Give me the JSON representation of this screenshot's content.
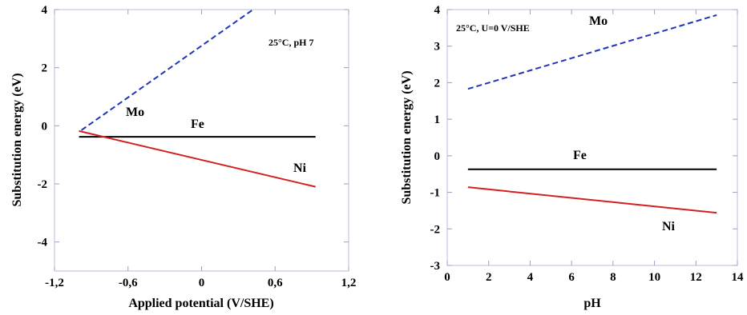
{
  "chart_data": [
    {
      "type": "line",
      "title": "",
      "xlabel": "Applied potential (V/SHE)",
      "ylabel": "Substitution energy (eV)",
      "xlim": [
        -1.2,
        1.2
      ],
      "ylim": [
        -5,
        4
      ],
      "x_ticks": [
        -1.2,
        -0.6,
        0,
        0.6,
        1.2
      ],
      "x_tick_labels": [
        "-1,2",
        "-0,6",
        "0",
        "0,6",
        "1,2"
      ],
      "y_ticks": [
        -4,
        -2,
        0,
        2,
        4
      ],
      "y_tick_labels": [
        "-4",
        "-2",
        "0",
        "2",
        "4"
      ],
      "condition_label": "25°C, pH 7",
      "grid": false,
      "series": [
        {
          "name": "Mo",
          "color": "#1f35b8",
          "dash": "dashed",
          "points": [
            [
              -0.98,
              -0.15
            ],
            [
              0.42,
              4.0
            ]
          ]
        },
        {
          "name": "Fe",
          "color": "#000000",
          "dash": "solid",
          "points": [
            [
              -1.0,
              -0.38
            ],
            [
              0.93,
              -0.38
            ]
          ]
        },
        {
          "name": "Ni",
          "color": "#d42020",
          "dash": "solid",
          "points": [
            [
              -1.0,
              -0.18
            ],
            [
              0.93,
              -2.1
            ]
          ]
        }
      ]
    },
    {
      "type": "line",
      "title": "",
      "xlabel": "pH",
      "ylabel": "Substitution energy (eV)",
      "xlim": [
        0,
        14
      ],
      "ylim": [
        -3,
        4
      ],
      "x_ticks": [
        0,
        2,
        4,
        6,
        8,
        10,
        12,
        14
      ],
      "x_tick_labels": [
        "0",
        "2",
        "4",
        "6",
        "8",
        "10",
        "12",
        "14"
      ],
      "y_ticks": [
        -3,
        -2,
        -1,
        0,
        1,
        2,
        3,
        4
      ],
      "y_tick_labels": [
        "-3",
        "-2",
        "-1",
        "0",
        "1",
        "2",
        "3",
        "4"
      ],
      "condition_label": "25°C, U=0 V/SHE",
      "grid": false,
      "series": [
        {
          "name": "Mo",
          "color": "#1f35b8",
          "dash": "dashed",
          "points": [
            [
              1,
              1.83
            ],
            [
              13,
              3.85
            ]
          ]
        },
        {
          "name": "Fe",
          "color": "#000000",
          "dash": "solid",
          "points": [
            [
              1,
              -0.37
            ],
            [
              13,
              -0.37
            ]
          ]
        },
        {
          "name": "Ni",
          "color": "#d42020",
          "dash": "solid",
          "points": [
            [
              1,
              -0.86
            ],
            [
              13,
              -1.56
            ]
          ]
        }
      ]
    }
  ]
}
